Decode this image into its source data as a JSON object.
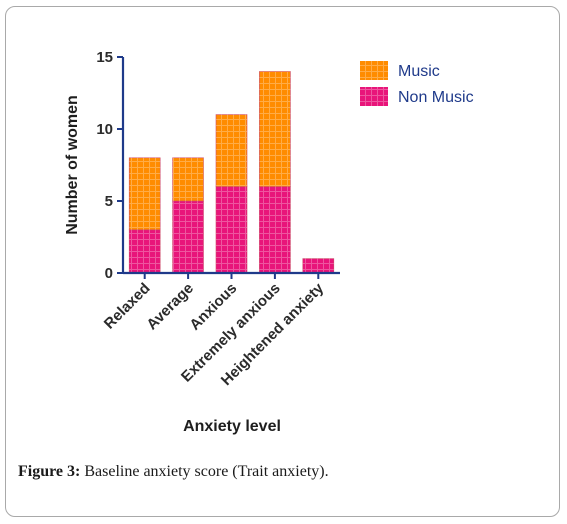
{
  "chart_data": {
    "type": "bar",
    "stacked": true,
    "categories": [
      "Relaxed",
      "Average",
      "Anxious",
      "Extremely anxious",
      "Heightened anxiety"
    ],
    "series": [
      {
        "name": "Non Music",
        "values": [
          3,
          5,
          6,
          6,
          1
        ],
        "color": "#e8157a"
      },
      {
        "name": "Music",
        "values": [
          5,
          3,
          5,
          8,
          0
        ],
        "color": "#ff8c00"
      }
    ],
    "xlabel": "Anxiety level",
    "ylabel": "Number of women",
    "ylim": [
      0,
      15
    ],
    "yticks": [
      0,
      5,
      10,
      15
    ],
    "grid": false,
    "legend_position": "top-right",
    "legend_order": [
      "Music",
      "Non Music"
    ]
  },
  "caption": {
    "label": "Figure 3:",
    "text": "Baseline anxiety score (Trait anxiety)."
  },
  "axis_color": "#1f3a8a"
}
